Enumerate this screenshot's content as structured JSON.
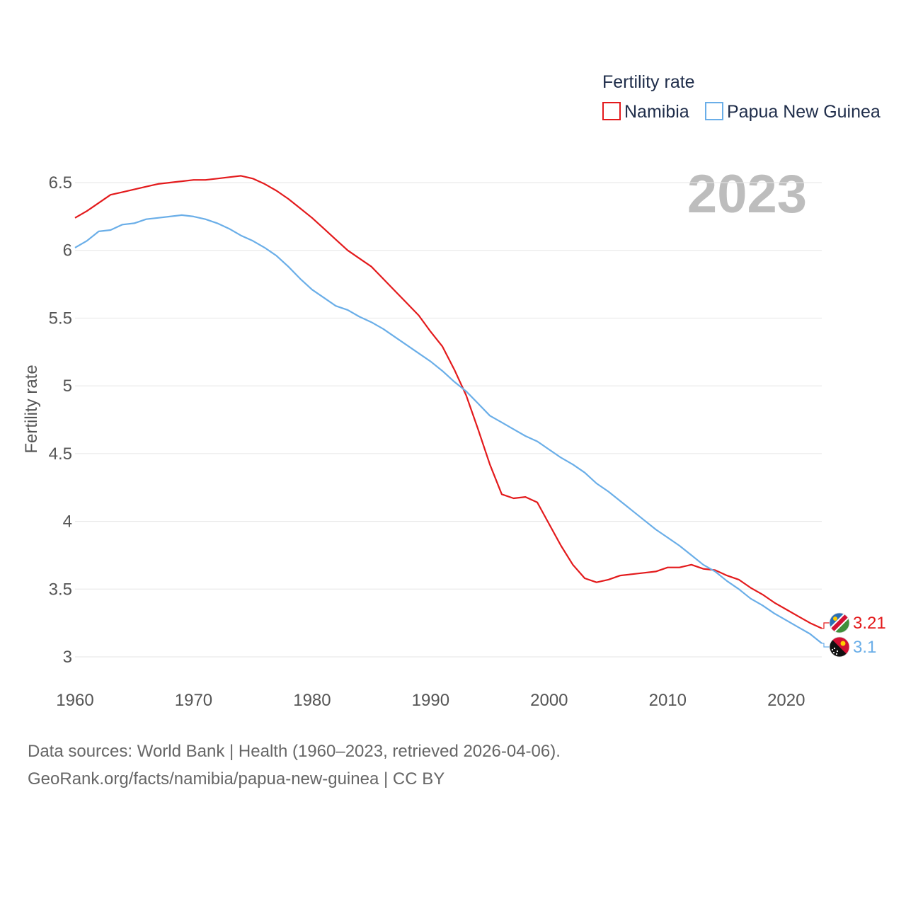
{
  "chart_data": {
    "type": "line",
    "legend_title": "Fertility rate",
    "ylabel": "Fertility rate",
    "xlabel": "",
    "year_label": "2023",
    "xlim": [
      1960,
      2023
    ],
    "ylim": [
      2.9,
      6.7
    ],
    "x_ticks": [
      1960,
      1970,
      1980,
      1990,
      2000,
      2010,
      2020
    ],
    "y_ticks": [
      3,
      3.5,
      4,
      4.5,
      5,
      5.5,
      6,
      6.5
    ],
    "x_tick_labels": [
      "1960",
      "1970",
      "1980",
      "1990",
      "2000",
      "2010",
      "2020"
    ],
    "y_tick_labels": [
      "3",
      "3.5",
      "4",
      "4.5",
      "5",
      "5.5",
      "6",
      "6.5"
    ],
    "x": [
      1960,
      1961,
      1962,
      1963,
      1964,
      1965,
      1966,
      1967,
      1968,
      1969,
      1970,
      1971,
      1972,
      1973,
      1974,
      1975,
      1976,
      1977,
      1978,
      1979,
      1980,
      1981,
      1982,
      1983,
      1984,
      1985,
      1986,
      1987,
      1988,
      1989,
      1990,
      1991,
      1992,
      1993,
      1994,
      1995,
      1996,
      1997,
      1998,
      1999,
      2000,
      2001,
      2002,
      2003,
      2004,
      2005,
      2006,
      2007,
      2008,
      2009,
      2010,
      2011,
      2012,
      2013,
      2014,
      2015,
      2016,
      2017,
      2018,
      2019,
      2020,
      2021,
      2022,
      2023
    ],
    "series": [
      {
        "name": "Namibia",
        "color": "#e31a1c",
        "end_label": "3.21",
        "flag": "namibia-flag-icon",
        "values": [
          6.24,
          6.29,
          6.35,
          6.41,
          6.43,
          6.45,
          6.47,
          6.49,
          6.5,
          6.51,
          6.52,
          6.52,
          6.53,
          6.54,
          6.55,
          6.53,
          6.49,
          6.44,
          6.38,
          6.31,
          6.24,
          6.16,
          6.08,
          6.0,
          5.94,
          5.88,
          5.79,
          5.7,
          5.61,
          5.52,
          5.4,
          5.29,
          5.12,
          4.93,
          4.68,
          4.42,
          4.2,
          4.17,
          4.18,
          4.14,
          3.98,
          3.82,
          3.68,
          3.58,
          3.55,
          3.57,
          3.6,
          3.61,
          3.62,
          3.63,
          3.66,
          3.66,
          3.68,
          3.65,
          3.64,
          3.6,
          3.57,
          3.51,
          3.46,
          3.4,
          3.35,
          3.3,
          3.25,
          3.21
        ]
      },
      {
        "name": "Papua New Guinea",
        "color": "#6aaee8",
        "end_label": "3.1",
        "flag": "papua-new-guinea-flag-icon",
        "values": [
          6.02,
          6.07,
          6.14,
          6.15,
          6.19,
          6.2,
          6.23,
          6.24,
          6.25,
          6.26,
          6.25,
          6.23,
          6.2,
          6.16,
          6.11,
          6.07,
          6.02,
          5.96,
          5.88,
          5.79,
          5.71,
          5.65,
          5.59,
          5.56,
          5.51,
          5.47,
          5.42,
          5.36,
          5.3,
          5.24,
          5.18,
          5.11,
          5.03,
          4.96,
          4.87,
          4.78,
          4.73,
          4.68,
          4.63,
          4.59,
          4.53,
          4.47,
          4.42,
          4.36,
          4.28,
          4.22,
          4.15,
          4.08,
          4.01,
          3.94,
          3.88,
          3.82,
          3.75,
          3.68,
          3.63,
          3.56,
          3.5,
          3.43,
          3.38,
          3.32,
          3.27,
          3.22,
          3.17,
          3.1
        ]
      }
    ]
  },
  "footer": {
    "source_line": "Data sources: World Bank | Health (1960–2023, retrieved 2026-04-06).",
    "url_line": "GeoRank.org/facts/namibia/papua-new-guinea | CC BY"
  }
}
